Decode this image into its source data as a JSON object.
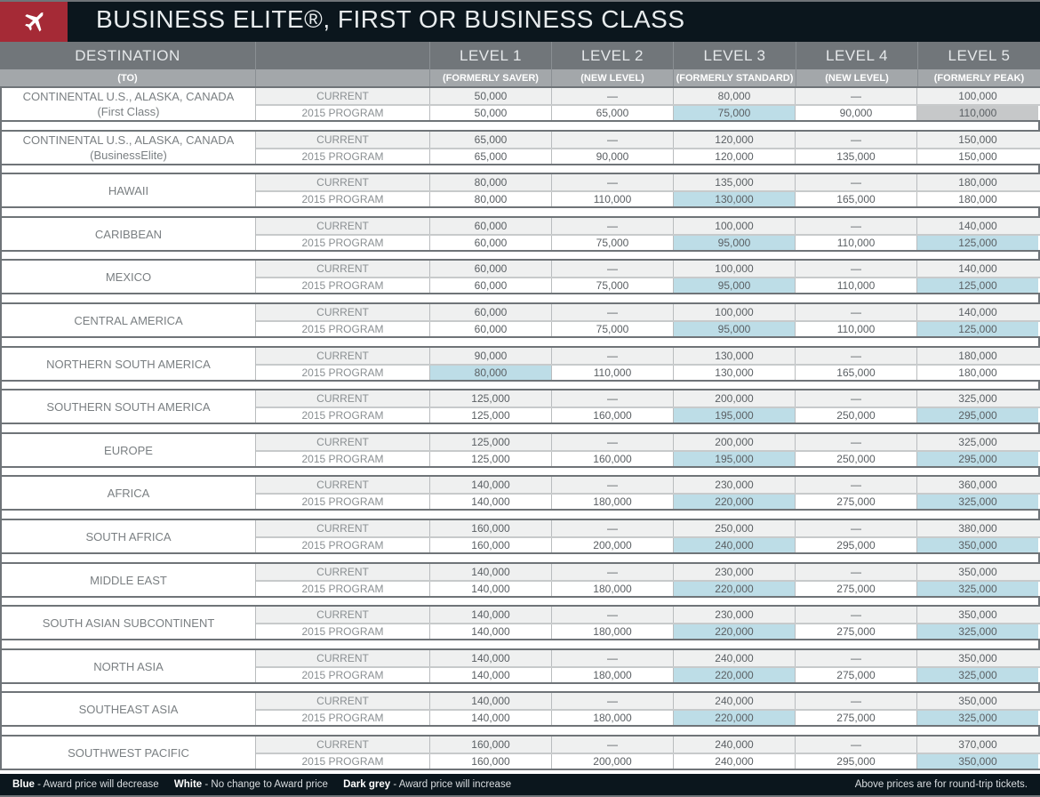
{
  "title": "BUSINESS ELITE®, FIRST OR BUSINESS CLASS",
  "icon": "airplane-icon",
  "colors": {
    "title_bg": "#0b161d",
    "icon_bg": "#a52a36",
    "header_bg": "#71767a",
    "subheader_bg": "#a3a7aa",
    "decrease_blue": "#bddde7",
    "increase_grey": "#c6c8c9"
  },
  "columns": {
    "destination": "DESTINATION",
    "destination_sub": "(TO)",
    "levels": [
      {
        "label": "LEVEL 1",
        "sub": "(FORMERLY SAVER)"
      },
      {
        "label": "LEVEL 2",
        "sub": "(NEW LEVEL)"
      },
      {
        "label": "LEVEL 3",
        "sub": "(FORMERLY STANDARD)"
      },
      {
        "label": "LEVEL 4",
        "sub": "(NEW LEVEL)"
      },
      {
        "label": "LEVEL 5",
        "sub": "(FORMERLY PEAK)"
      }
    ]
  },
  "row_labels": {
    "current": "CURRENT",
    "program": "2015 PROGRAM"
  },
  "rows": [
    {
      "dest": "CONTINENTAL U.S., ALASKA, CANADA",
      "dest2": "(First Class)",
      "current": [
        "50,000",
        "—",
        "80,000",
        "—",
        "100,000"
      ],
      "program": [
        "50,000",
        "65,000",
        "75,000",
        "90,000",
        "110,000"
      ],
      "status": [
        "",
        "",
        "blue",
        "",
        "grey"
      ]
    },
    {
      "dest": "CONTINENTAL U.S., ALASKA, CANADA",
      "dest2": "(BusinessElite)",
      "current": [
        "65,000",
        "—",
        "120,000",
        "—",
        "150,000"
      ],
      "program": [
        "65,000",
        "90,000",
        "120,000",
        "135,000",
        "150,000"
      ],
      "status": [
        "",
        "",
        "",
        "",
        ""
      ]
    },
    {
      "dest": "HAWAII",
      "dest2": "",
      "current": [
        "80,000",
        "—",
        "135,000",
        "—",
        "180,000"
      ],
      "program": [
        "80,000",
        "110,000",
        "130,000",
        "165,000",
        "180,000"
      ],
      "status": [
        "",
        "",
        "blue",
        "",
        ""
      ]
    },
    {
      "dest": "CARIBBEAN",
      "dest2": "",
      "current": [
        "60,000",
        "—",
        "100,000",
        "—",
        "140,000"
      ],
      "program": [
        "60,000",
        "75,000",
        "95,000",
        "110,000",
        "125,000"
      ],
      "status": [
        "",
        "",
        "blue",
        "",
        "blue"
      ]
    },
    {
      "dest": "MEXICO",
      "dest2": "",
      "current": [
        "60,000",
        "—",
        "100,000",
        "—",
        "140,000"
      ],
      "program": [
        "60,000",
        "75,000",
        "95,000",
        "110,000",
        "125,000"
      ],
      "status": [
        "",
        "",
        "blue",
        "",
        "blue"
      ]
    },
    {
      "dest": "CENTRAL AMERICA",
      "dest2": "",
      "current": [
        "60,000",
        "—",
        "100,000",
        "—",
        "140,000"
      ],
      "program": [
        "60,000",
        "75,000",
        "95,000",
        "110,000",
        "125,000"
      ],
      "status": [
        "",
        "",
        "blue",
        "",
        "blue"
      ]
    },
    {
      "dest": "NORTHERN SOUTH AMERICA",
      "dest2": "",
      "current": [
        "90,000",
        "—",
        "130,000",
        "—",
        "180,000"
      ],
      "program": [
        "80,000",
        "110,000",
        "130,000",
        "165,000",
        "180,000"
      ],
      "status": [
        "blue",
        "",
        "",
        "",
        ""
      ]
    },
    {
      "dest": "SOUTHERN SOUTH AMERICA",
      "dest2": "",
      "current": [
        "125,000",
        "—",
        "200,000",
        "—",
        "325,000"
      ],
      "program": [
        "125,000",
        "160,000",
        "195,000",
        "250,000",
        "295,000"
      ],
      "status": [
        "",
        "",
        "blue",
        "",
        "blue"
      ]
    },
    {
      "dest": "EUROPE",
      "dest2": "",
      "current": [
        "125,000",
        "—",
        "200,000",
        "—",
        "325,000"
      ],
      "program": [
        "125,000",
        "160,000",
        "195,000",
        "250,000",
        "295,000"
      ],
      "status": [
        "",
        "",
        "blue",
        "",
        "blue"
      ]
    },
    {
      "dest": "AFRICA",
      "dest2": "",
      "current": [
        "140,000",
        "—",
        "230,000",
        "—",
        "360,000"
      ],
      "program": [
        "140,000",
        "180,000",
        "220,000",
        "275,000",
        "325,000"
      ],
      "status": [
        "",
        "",
        "blue",
        "",
        "blue"
      ]
    },
    {
      "dest": "SOUTH AFRICA",
      "dest2": "",
      "current": [
        "160,000",
        "—",
        "250,000",
        "—",
        "380,000"
      ],
      "program": [
        "160,000",
        "200,000",
        "240,000",
        "295,000",
        "350,000"
      ],
      "status": [
        "",
        "",
        "blue",
        "",
        "blue"
      ]
    },
    {
      "dest": "MIDDLE EAST",
      "dest2": "",
      "current": [
        "140,000",
        "—",
        "230,000",
        "—",
        "350,000"
      ],
      "program": [
        "140,000",
        "180,000",
        "220,000",
        "275,000",
        "325,000"
      ],
      "status": [
        "",
        "",
        "blue",
        "",
        "blue"
      ]
    },
    {
      "dest": "SOUTH ASIAN SUBCONTINENT",
      "dest2": "",
      "current": [
        "140,000",
        "—",
        "230,000",
        "—",
        "350,000"
      ],
      "program": [
        "140,000",
        "180,000",
        "220,000",
        "275,000",
        "325,000"
      ],
      "status": [
        "",
        "",
        "blue",
        "",
        "blue"
      ]
    },
    {
      "dest": "NORTH ASIA",
      "dest2": "",
      "current": [
        "140,000",
        "—",
        "240,000",
        "—",
        "350,000"
      ],
      "program": [
        "140,000",
        "180,000",
        "220,000",
        "275,000",
        "325,000"
      ],
      "status": [
        "",
        "",
        "blue",
        "",
        "blue"
      ]
    },
    {
      "dest": "SOUTHEAST ASIA",
      "dest2": "",
      "current": [
        "140,000",
        "—",
        "240,000",
        "—",
        "350,000"
      ],
      "program": [
        "140,000",
        "180,000",
        "220,000",
        "275,000",
        "325,000"
      ],
      "status": [
        "",
        "",
        "blue",
        "",
        "blue"
      ]
    },
    {
      "dest": "SOUTHWEST PACIFIC",
      "dest2": "",
      "current": [
        "160,000",
        "—",
        "240,000",
        "—",
        "370,000"
      ],
      "program": [
        "160,000",
        "200,000",
        "240,000",
        "295,000",
        "350,000"
      ],
      "status": [
        "",
        "",
        "",
        "",
        "blue"
      ]
    }
  ],
  "footer": {
    "legend": [
      {
        "key": "Blue",
        "desc": " - Award price will decrease"
      },
      {
        "key": "White",
        "desc": " - No change to Award price"
      },
      {
        "key": "Dark grey",
        "desc": " - Award price will increase"
      }
    ],
    "note": "Above prices are for round-trip tickets."
  }
}
